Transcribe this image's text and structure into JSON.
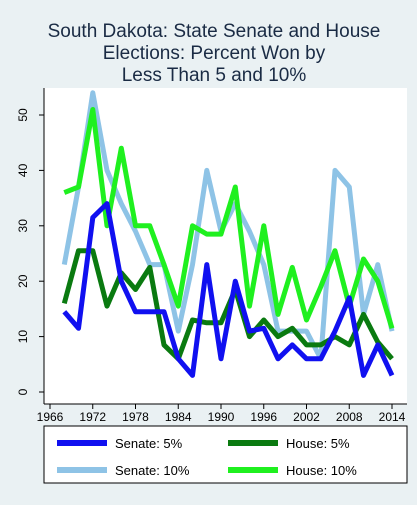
{
  "chart_data": {
    "type": "line",
    "title": [
      "South Dakota: State Senate and House",
      "Elections: Percent Won by",
      "Less Than 5 and 10%"
    ],
    "xlabel": "",
    "ylabel": "",
    "x": [
      1968,
      1970,
      1972,
      1974,
      1976,
      1978,
      1980,
      1982,
      1984,
      1986,
      1988,
      1990,
      1992,
      1994,
      1996,
      1998,
      2000,
      2002,
      2004,
      2006,
      2008,
      2010,
      2012,
      2014
    ],
    "xlim": [
      1966,
      2014
    ],
    "xticks": [
      "1966",
      "1972",
      "1978",
      "1984",
      "1990",
      "1996",
      "2002",
      "2008",
      "2014"
    ],
    "ylim": [
      0,
      55
    ],
    "yticks": [
      "0",
      "10",
      "20",
      "30",
      "40",
      "50"
    ],
    "grid": false,
    "legend_position": "bottom",
    "series": [
      {
        "name": "Senate: 10%",
        "color": "#8ec3e6",
        "values": [
          23,
          37,
          54,
          40,
          34,
          29,
          23,
          23,
          11,
          23,
          40,
          29,
          34,
          29,
          23,
          11,
          11,
          11,
          6,
          40,
          37,
          14,
          23,
          11
        ]
      },
      {
        "name": "House: 10%",
        "color": "#1ff01f",
        "values": [
          36,
          37,
          51,
          30,
          44,
          30,
          30,
          23,
          15.5,
          30,
          28.5,
          28.5,
          37,
          15.5,
          30,
          14,
          22.5,
          13,
          19,
          25.5,
          15.5,
          24,
          20,
          11.5
        ]
      },
      {
        "name": "House: 5%",
        "color": "#0a7a10",
        "values": [
          16,
          25.5,
          25.5,
          15.5,
          21.5,
          18.5,
          22.5,
          8.5,
          6,
          13,
          12.5,
          12.5,
          18.5,
          10,
          13,
          10,
          11.5,
          8.5,
          8.5,
          10,
          8.5,
          14,
          9,
          6
        ]
      },
      {
        "name": "Senate: 5%",
        "color": "#1010f0",
        "values": [
          14.5,
          11.5,
          31.5,
          34,
          20,
          14.5,
          14.5,
          14.5,
          6,
          3,
          23,
          6,
          20,
          11,
          11.5,
          6,
          8.5,
          6,
          6,
          11,
          17,
          3,
          8.5,
          3
        ]
      }
    ],
    "legend": [
      "Senate: 5%",
      "House: 5%",
      "Senate: 10%",
      "House: 10%"
    ]
  }
}
